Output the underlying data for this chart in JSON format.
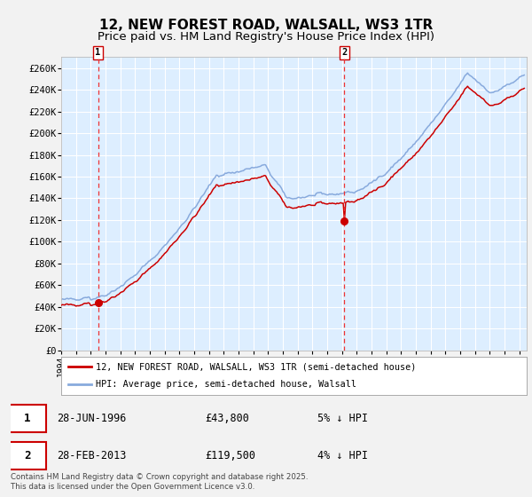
{
  "title_line1": "12, NEW FOREST ROAD, WALSALL, WS3 1TR",
  "title_line2": "Price paid vs. HM Land Registry's House Price Index (HPI)",
  "ylim": [
    0,
    270000
  ],
  "xlim_start": 1994.0,
  "xlim_end": 2025.5,
  "ytick_values": [
    0,
    20000,
    40000,
    60000,
    80000,
    100000,
    120000,
    140000,
    160000,
    180000,
    200000,
    220000,
    240000,
    260000
  ],
  "ytick_labels": [
    "£0",
    "£20K",
    "£40K",
    "£60K",
    "£80K",
    "£100K",
    "£120K",
    "£140K",
    "£160K",
    "£180K",
    "£200K",
    "£220K",
    "£240K",
    "£260K"
  ],
  "xtick_years": [
    1994,
    1995,
    1996,
    1997,
    1998,
    1999,
    2000,
    2001,
    2002,
    2003,
    2004,
    2005,
    2006,
    2007,
    2008,
    2009,
    2010,
    2011,
    2012,
    2013,
    2014,
    2015,
    2016,
    2017,
    2018,
    2019,
    2020,
    2021,
    2022,
    2023,
    2024,
    2025
  ],
  "sale1_x": 1996.49,
  "sale1_y": 43800,
  "sale1_label": "1",
  "sale1_date": "28-JUN-1996",
  "sale1_price": "£43,800",
  "sale1_hpi": "5% ↓ HPI",
  "sale2_x": 2013.16,
  "sale2_y": 119500,
  "sale2_label": "2",
  "sale2_date": "28-FEB-2013",
  "sale2_price": "£119,500",
  "sale2_hpi": "4% ↓ HPI",
  "line_property_color": "#cc0000",
  "line_hpi_color": "#88aadd",
  "fig_bg_color": "#f2f2f2",
  "plot_bg_color": "#ddeeff",
  "grid_color": "#ffffff",
  "vline_color": "#ee3333",
  "legend_label_property": "12, NEW FOREST ROAD, WALSALL, WS3 1TR (semi-detached house)",
  "legend_label_hpi": "HPI: Average price, semi-detached house, Walsall",
  "footnote": "Contains HM Land Registry data © Crown copyright and database right 2025.\nThis data is licensed under the Open Government Licence v3.0.",
  "title_fontsize": 11,
  "subtitle_fontsize": 9.5
}
